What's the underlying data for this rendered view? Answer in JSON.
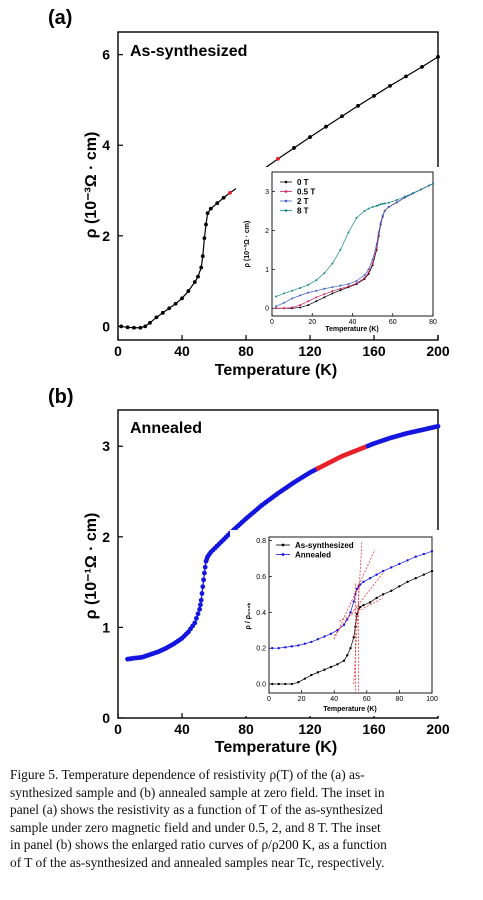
{
  "panel_a": {
    "label": "(a)",
    "annotation": "As-synthesized",
    "ylabel": "ρ (10⁻³Ω · cm)",
    "xlabel": "Temperature (K)"
  },
  "panel_b": {
    "label": "(b)",
    "annotation": "Annealed",
    "ylabel": "ρ (10⁻¹Ω · cm)",
    "xlabel": "Temperature (K)"
  },
  "inset_a": {
    "ylabel": "ρ (10⁻³Ω · cm)",
    "xlabel": "Temperature (K)"
  },
  "inset_b": {
    "ylabel": "ρ / ρ₂₀₀ₖ",
    "xlabel": "Temperature (K)"
  },
  "colors": {
    "black": "#000000",
    "red": "#e8202a",
    "blue": "#1515e0",
    "teal": "#1a8a8a",
    "magenta": "#d0245a",
    "dashed_red": "#e8202a"
  },
  "caption": {
    "lines": [
      "Figure 5. Temperature dependence of resistivity ρ(T) of the (a) as-",
      "synthesized sample and (b) annealed sample at zero field. The inset in",
      "panel (a) shows the resistivity as a function of T of the as-synthesized",
      "sample under zero magnetic field and under 0.5, 2, and 8 T. The inset",
      "in panel (b) shows the enlarged ratio curves of ρ/ρ200 K, as a function",
      "of T of the as-synthesized and annealed samples near Tc, respectively."
    ]
  },
  "chart_data": [
    {
      "type": "line",
      "panel": "a",
      "title": "As-synthesized",
      "xlabel": "Temperature (K)",
      "ylabel": "ρ (10⁻³Ω · cm)",
      "xlim": [
        0,
        200
      ],
      "ylim": [
        -0.3,
        6.5
      ],
      "xticks": [
        0,
        40,
        80,
        120,
        160,
        200
      ],
      "yticks": [
        0,
        2,
        4,
        6
      ],
      "x": [
        2,
        6,
        10,
        14,
        17,
        20,
        24,
        28,
        32,
        36,
        40,
        44,
        48,
        50,
        52,
        53,
        54,
        55,
        56,
        58,
        62,
        66,
        70,
        75,
        80,
        90,
        100,
        110,
        120,
        130,
        140,
        150,
        160,
        170,
        180,
        190,
        200
      ],
      "series": [
        {
          "values": [
            0,
            -0.02,
            -0.03,
            -0.03,
            0.0,
            0.08,
            0.2,
            0.3,
            0.4,
            0.5,
            0.62,
            0.78,
            0.98,
            1.1,
            1.3,
            1.55,
            1.95,
            2.25,
            2.5,
            2.6,
            2.72,
            2.84,
            2.95,
            3.07,
            3.2,
            3.45,
            3.7,
            3.94,
            4.18,
            4.41,
            4.64,
            4.87,
            5.09,
            5.31,
            5.52,
            5.73,
            5.95
          ]
        }
      ],
      "annotations": [
        "linear fit 70–108 K (red)"
      ],
      "grid": false
    },
    {
      "type": "line",
      "panel": "a-inset",
      "xlabel": "Temperature (K)",
      "ylabel": "ρ (10⁻³Ω · cm)",
      "xlim": [
        0,
        80
      ],
      "ylim": [
        -0.2,
        3.5
      ],
      "xticks": [
        0,
        20,
        40,
        60,
        80
      ],
      "yticks": [
        0,
        1,
        2,
        3
      ],
      "x": [
        2,
        6,
        10,
        14,
        18,
        22,
        26,
        30,
        34,
        38,
        42,
        46,
        48,
        50,
        52,
        53,
        54,
        55,
        56,
        58,
        62,
        66,
        70,
        74,
        78,
        80
      ],
      "series": [
        {
          "name": "0 T",
          "values": [
            0,
            0,
            0,
            0.02,
            0.08,
            0.18,
            0.28,
            0.38,
            0.46,
            0.54,
            0.62,
            0.75,
            0.88,
            1.1,
            1.5,
            1.85,
            2.15,
            2.35,
            2.5,
            2.6,
            2.72,
            2.84,
            2.95,
            3.05,
            3.15,
            3.2
          ]
        },
        {
          "name": "0.5 T",
          "values": [
            0,
            0,
            0.02,
            0.08,
            0.18,
            0.28,
            0.36,
            0.44,
            0.5,
            0.56,
            0.64,
            0.78,
            0.92,
            1.15,
            1.55,
            1.9,
            2.18,
            2.37,
            2.5,
            2.6,
            2.72,
            2.84,
            2.95,
            3.05,
            3.15,
            3.2
          ]
        },
        {
          "name": "2 T",
          "values": [
            0.05,
            0.14,
            0.25,
            0.33,
            0.4,
            0.45,
            0.5,
            0.54,
            0.58,
            0.62,
            0.7,
            0.85,
            1.0,
            1.25,
            1.65,
            1.95,
            2.2,
            2.38,
            2.5,
            2.6,
            2.72,
            2.84,
            2.95,
            3.05,
            3.15,
            3.2
          ]
        },
        {
          "name": "8 T",
          "values": [
            0.3,
            0.38,
            0.45,
            0.52,
            0.6,
            0.72,
            0.9,
            1.15,
            1.5,
            1.95,
            2.32,
            2.5,
            2.56,
            2.6,
            2.63,
            2.65,
            2.67,
            2.68,
            2.69,
            2.71,
            2.78,
            2.87,
            2.96,
            3.05,
            3.15,
            3.2
          ]
        }
      ],
      "legend": "top-left",
      "grid": false
    },
    {
      "type": "line",
      "panel": "b",
      "title": "Annealed",
      "xlabel": "Temperature (K)",
      "ylabel": "ρ (10⁻¹Ω · cm)",
      "xlim": [
        0,
        200
      ],
      "ylim": [
        0,
        3.4
      ],
      "xticks": [
        0,
        40,
        80,
        120,
        160,
        200
      ],
      "yticks": [
        0,
        1,
        2,
        3
      ],
      "x": [
        6,
        10,
        15,
        20,
        25,
        30,
        35,
        40,
        44,
        48,
        51,
        52,
        53,
        54,
        55,
        56,
        58,
        62,
        66,
        70,
        80,
        90,
        100,
        110,
        120,
        130,
        140,
        150,
        160,
        170,
        180,
        190,
        200
      ],
      "series": [
        {
          "values": [
            0.65,
            0.66,
            0.67,
            0.7,
            0.73,
            0.77,
            0.82,
            0.88,
            0.95,
            1.05,
            1.2,
            1.3,
            1.45,
            1.6,
            1.73,
            1.78,
            1.83,
            1.9,
            1.97,
            2.04,
            2.2,
            2.35,
            2.48,
            2.6,
            2.71,
            2.8,
            2.89,
            2.96,
            3.03,
            3.09,
            3.14,
            3.18,
            3.22
          ]
        }
      ],
      "annotations": [
        "linear fit 125–155 K (red)"
      ],
      "grid": false
    },
    {
      "type": "line",
      "panel": "b-inset",
      "xlabel": "Temperature (K)",
      "ylabel": "ρ / ρ₂₀₀ₖ",
      "xlim": [
        0,
        100
      ],
      "ylim": [
        -0.05,
        0.82
      ],
      "xticks": [
        0,
        20,
        40,
        60,
        80,
        100
      ],
      "yticks": [
        0.0,
        0.2,
        0.4,
        0.6,
        0.8
      ],
      "x": [
        2,
        6,
        10,
        14,
        18,
        22,
        26,
        30,
        34,
        38,
        42,
        46,
        48,
        50,
        52,
        53,
        54,
        55,
        56,
        58,
        62,
        66,
        70,
        75,
        80,
        85,
        90,
        95,
        100
      ],
      "series": [
        {
          "name": "As-synthesized",
          "values": [
            0,
            0,
            0,
            0,
            0.01,
            0.03,
            0.05,
            0.065,
            0.08,
            0.095,
            0.11,
            0.13,
            0.16,
            0.2,
            0.26,
            0.32,
            0.39,
            0.42,
            0.43,
            0.44,
            0.455,
            0.48,
            0.5,
            0.52,
            0.545,
            0.57,
            0.59,
            0.61,
            0.63
          ]
        },
        {
          "name": "Annealed",
          "values": [
            0.2,
            0.2,
            0.205,
            0.21,
            0.215,
            0.225,
            0.235,
            0.25,
            0.265,
            0.28,
            0.3,
            0.33,
            0.36,
            0.4,
            0.46,
            0.5,
            0.53,
            0.545,
            0.555,
            0.57,
            0.59,
            0.61,
            0.63,
            0.65,
            0.67,
            0.69,
            0.71,
            0.725,
            0.74
          ]
        }
      ],
      "annotations": [
        "dotted red tangent lines and vertical markers near 53–55 K"
      ],
      "legend": "top-left",
      "grid": false
    }
  ]
}
